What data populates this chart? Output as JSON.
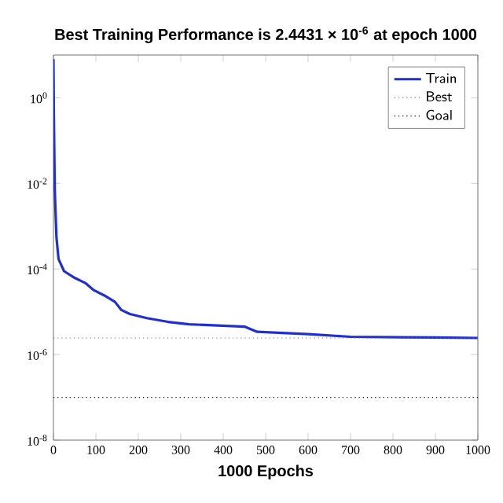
{
  "chart_data": {
    "type": "line",
    "title": "Best Training Performance is 2.4431 × 10$^{-6}$ at epoch 1000",
    "xlabel": "1000 Epochs",
    "x": [
      0,
      1,
      3,
      7,
      12,
      25,
      50,
      75,
      95,
      120,
      145,
      160,
      180,
      220,
      270,
      320,
      450,
      480,
      600,
      700,
      900,
      1000
    ],
    "series": [
      {
        "name": "Train",
        "color": "#1f2fd0",
        "values": [
          8,
          0.39,
          0.0076,
          0.00056,
          0.00017,
          8.9e-05,
          6.2e-05,
          4.7e-05,
          3.2e-05,
          2.4e-05,
          1.7e-05,
          1.1e-05,
          8.9e-06,
          7.1e-06,
          5.8e-06,
          5.1e-06,
          4.5e-06,
          3.4e-06,
          3e-06,
          2.6e-06,
          2.5e-06,
          2.4431e-06
        ]
      }
    ],
    "ref_lines": [
      {
        "axis": "y",
        "value": 2.4431e-06,
        "label": "Best",
        "color": "#707070",
        "line_style": "dotted"
      },
      {
        "axis": "y",
        "value": 1e-07,
        "label": "Goal",
        "color": "#000000",
        "line_style": "dotted"
      }
    ],
    "log": "y",
    "xlim": [
      0,
      1000
    ],
    "ylim": [
      1e-08,
      10
    ],
    "xticks": [
      0,
      100,
      200,
      300,
      400,
      500,
      600,
      700,
      800,
      900,
      1000
    ],
    "yticks": [
      {
        "value": 1e-08,
        "label": "10$^{-8}$"
      },
      {
        "value": 1e-06,
        "label": "10$^{-6}$"
      },
      {
        "value": 0.0001,
        "label": "10$^{-4}$"
      },
      {
        "value": 0.01,
        "label": "10$^{-2}$"
      },
      {
        "value": 1,
        "label": "10$^{0}$"
      }
    ],
    "legend": "top right",
    "grid": false,
    "line_style": "solid",
    "marker": "none"
  }
}
